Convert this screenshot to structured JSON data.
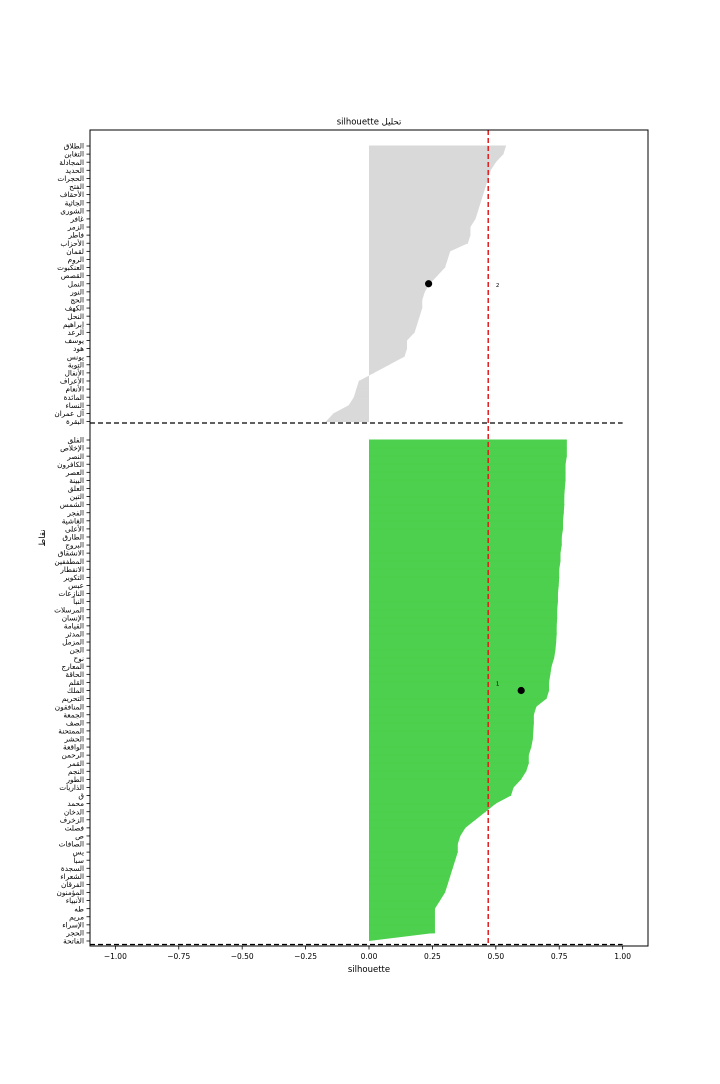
{
  "chart_data": {
    "type": "silhouette",
    "title": "silhouette تحليل",
    "xlabel": "silhouette",
    "ylabel": "نقاط",
    "xlim": [
      -1.1,
      1.1
    ],
    "x_ticks": [
      -1.0,
      -0.75,
      -0.5,
      -0.25,
      0.0,
      0.25,
      0.5,
      0.75,
      1.0
    ],
    "x_tick_labels": [
      "−1.00",
      "−0.75",
      "−0.50",
      "−0.25",
      "0.00",
      "0.25",
      "0.50",
      "0.75",
      "1.00"
    ],
    "average_silhouette": 0.47,
    "clusters": [
      {
        "label": "2",
        "color": "#d9d9d9",
        "center": [
          0.235,
          "النمل"
        ],
        "label_x": 0.5,
        "label_row": "النمل",
        "labels": [
          "الطلاق",
          "التغابن",
          "المجادلة",
          "الحديد",
          "الحجرات",
          "الفتح",
          "الأحقاف",
          "الجاثية",
          "الشورى",
          "غافر",
          "الزمر",
          "فاطر",
          "الأحزاب",
          "لقمان",
          "الروم",
          "العنكبوت",
          "القصص",
          "النمل",
          "النور",
          "الحج",
          "الكهف",
          "النحل",
          "إبراهيم",
          "الرعد",
          "يوسف",
          "هود",
          "يونس",
          "التوبة",
          "الأنفال",
          "الأعراف",
          "الأنعام",
          "المائدة",
          "النساء",
          "آل عمران",
          "البقرة"
        ],
        "values": [
          0.54,
          0.53,
          0.5,
          0.48,
          0.47,
          0.46,
          0.45,
          0.44,
          0.43,
          0.42,
          0.4,
          0.4,
          0.39,
          0.32,
          0.31,
          0.3,
          0.27,
          0.24,
          0.22,
          0.21,
          0.21,
          0.2,
          0.19,
          0.18,
          0.15,
          0.15,
          0.14,
          0.08,
          0.02,
          -0.04,
          -0.05,
          -0.06,
          -0.08,
          -0.14,
          -0.17
        ]
      },
      {
        "label": "1",
        "color": "#4dd04d",
        "center": [
          0.6,
          "الملك"
        ],
        "label_x": 0.5,
        "label_row": "القلم",
        "labels": [
          "الفلق",
          "الإخلاص",
          "النصر",
          "الكافرون",
          "العصر",
          "البينة",
          "العلق",
          "التين",
          "الشمس",
          "الفجر",
          "الغاشية",
          "الأعلى",
          "الطارق",
          "البروج",
          "الانشقاق",
          "المطففين",
          "الانفطار",
          "التكوير",
          "عبس",
          "النازعات",
          "النبأ",
          "المرسلات",
          "الإنسان",
          "القيامة",
          "المدثر",
          "المزمل",
          "الجن",
          "نوح",
          "المعارج",
          "الحاقة",
          "القلم",
          "الملك",
          "التحريم",
          "المنافقون",
          "الجمعة",
          "الصف",
          "الممتحنة",
          "الحشر",
          "الواقعة",
          "الرحمن",
          "القمر",
          "النجم",
          "الطور",
          "الذاريات",
          "ق",
          "محمد",
          "الدخان",
          "الزخرف",
          "فصلت",
          "ص",
          "الصافات",
          "يس",
          "سبأ",
          "السجدة",
          "الشعراء",
          "الفرقان",
          "المؤمنون",
          "الأنبياء",
          "طه",
          "مريم",
          "الإسراء",
          "الحجر",
          "الفاتحة"
        ],
        "values": [
          0.78,
          0.78,
          0.78,
          0.775,
          0.775,
          0.775,
          0.772,
          0.77,
          0.77,
          0.768,
          0.765,
          0.765,
          0.76,
          0.76,
          0.755,
          0.755,
          0.75,
          0.75,
          0.748,
          0.745,
          0.745,
          0.742,
          0.742,
          0.74,
          0.74,
          0.738,
          0.735,
          0.73,
          0.72,
          0.715,
          0.71,
          0.71,
          0.7,
          0.66,
          0.65,
          0.65,
          0.648,
          0.646,
          0.64,
          0.63,
          0.63,
          0.62,
          0.6,
          0.57,
          0.56,
          0.5,
          0.46,
          0.42,
          0.38,
          0.36,
          0.35,
          0.35,
          0.34,
          0.33,
          0.32,
          0.31,
          0.3,
          0.28,
          0.26,
          0.26,
          0.26,
          0.26,
          0.0
        ]
      }
    ]
  }
}
